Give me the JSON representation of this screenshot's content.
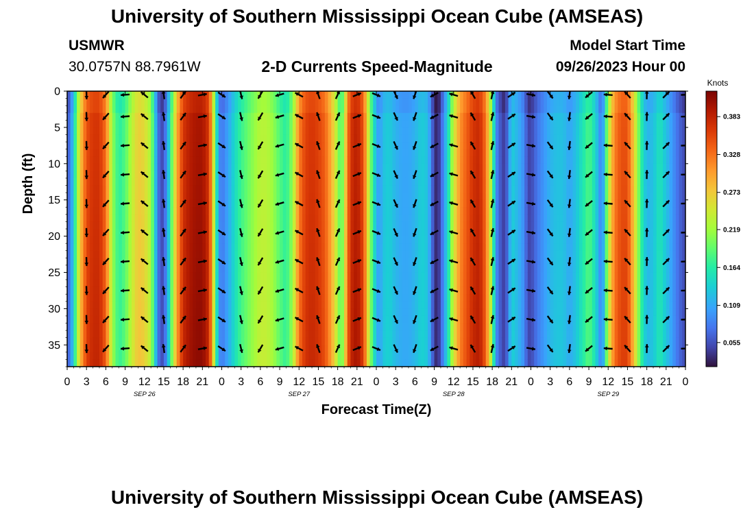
{
  "header": {
    "title": "University of Southern Mississippi Ocean Cube (AMSEAS)",
    "station": "USMWR",
    "coords": "30.0757N  88.7961W",
    "plot_title": "2-D Currents Speed-Magnitude",
    "model_start_label": "Model Start Time",
    "model_start_value": "09/26/2023 Hour 00"
  },
  "footer": {
    "title": "University of Southern Mississippi Ocean Cube (AMSEAS)"
  },
  "colors": {
    "low": "#30123b",
    "high": "#7a0403",
    "arrow": "#000000"
  },
  "chart_data": {
    "type": "heatmap",
    "title": "2-D Currents Speed-Magnitude",
    "xlabel": "Forecast Time(Z)",
    "ylabel": "Depth (ft)",
    "x_range_hours": [
      0,
      96
    ],
    "x_ticks": [
      {
        "h": 0,
        "label": "0"
      },
      {
        "h": 3,
        "label": "3"
      },
      {
        "h": 6,
        "label": "6"
      },
      {
        "h": 9,
        "label": "9"
      },
      {
        "h": 12,
        "label": "12"
      },
      {
        "h": 15,
        "label": "15"
      },
      {
        "h": 18,
        "label": "18"
      },
      {
        "h": 21,
        "label": "21"
      },
      {
        "h": 24,
        "label": "0"
      },
      {
        "h": 27,
        "label": "3"
      },
      {
        "h": 30,
        "label": "6"
      },
      {
        "h": 33,
        "label": "9"
      },
      {
        "h": 36,
        "label": "12"
      },
      {
        "h": 39,
        "label": "15"
      },
      {
        "h": 42,
        "label": "18"
      },
      {
        "h": 45,
        "label": "21"
      },
      {
        "h": 48,
        "label": "0"
      },
      {
        "h": 51,
        "label": "3"
      },
      {
        "h": 54,
        "label": "6"
      },
      {
        "h": 57,
        "label": "9"
      },
      {
        "h": 60,
        "label": "12"
      },
      {
        "h": 63,
        "label": "15"
      },
      {
        "h": 66,
        "label": "18"
      },
      {
        "h": 69,
        "label": "21"
      },
      {
        "h": 72,
        "label": "0"
      },
      {
        "h": 75,
        "label": "3"
      },
      {
        "h": 78,
        "label": "6"
      },
      {
        "h": 81,
        "label": "9"
      },
      {
        "h": 84,
        "label": "12"
      },
      {
        "h": 87,
        "label": "15"
      },
      {
        "h": 90,
        "label": "18"
      },
      {
        "h": 93,
        "label": "21"
      },
      {
        "h": 96,
        "label": "0"
      }
    ],
    "date_labels": [
      {
        "h": 12,
        "label": "SEP 26"
      },
      {
        "h": 36,
        "label": "SEP 27"
      },
      {
        "h": 60,
        "label": "SEP 28"
      },
      {
        "h": 84,
        "label": "SEP 29"
      }
    ],
    "y_range_ft": [
      0,
      38
    ],
    "y_ticks": [
      0,
      5,
      10,
      15,
      20,
      25,
      30,
      35
    ],
    "colorbar": {
      "unit_label": "Knots",
      "min": 0.02,
      "max": 0.42,
      "ticks": [
        "0.055",
        "0.109",
        "0.164",
        "0.219",
        "0.273",
        "0.328",
        "0.383"
      ]
    },
    "speed_profile_hours": [
      0,
      0.5,
      1,
      1.5,
      2,
      3,
      4,
      5,
      6,
      6.5,
      7,
      8,
      9,
      10,
      11,
      12,
      13,
      13.5,
      14,
      14.5,
      15,
      15.5,
      16,
      17,
      18,
      19,
      20,
      21,
      22,
      22.5,
      23,
      23.5,
      24,
      25,
      26,
      27,
      28,
      29,
      30,
      31,
      32,
      33,
      34,
      35,
      36,
      37,
      38,
      39,
      40,
      41,
      42,
      42.5,
      43,
      43.5,
      44,
      45,
      46,
      47,
      48,
      48.5,
      49,
      50,
      51,
      52,
      53,
      54,
      55,
      56,
      56.5,
      57,
      57.5,
      58,
      59,
      60,
      61,
      62,
      63,
      64,
      65,
      66,
      66.5,
      67,
      68,
      69,
      70,
      71,
      71.5,
      72,
      73,
      74,
      75,
      76,
      77,
      78,
      79,
      80,
      81,
      82,
      83,
      83.5,
      84,
      85,
      86,
      87,
      88,
      89,
      90,
      91,
      92,
      93,
      94,
      95,
      95.5,
      96
    ],
    "speed_profile_knots": [
      0.06,
      0.09,
      0.14,
      0.21,
      0.28,
      0.36,
      0.38,
      0.38,
      0.34,
      0.28,
      0.22,
      0.17,
      0.19,
      0.24,
      0.28,
      0.27,
      0.23,
      0.16,
      0.09,
      0.05,
      0.06,
      0.1,
      0.17,
      0.3,
      0.38,
      0.4,
      0.41,
      0.41,
      0.38,
      0.3,
      0.2,
      0.1,
      0.08,
      0.11,
      0.15,
      0.18,
      0.2,
      0.22,
      0.24,
      0.24,
      0.22,
      0.19,
      0.17,
      0.22,
      0.33,
      0.37,
      0.38,
      0.37,
      0.35,
      0.3,
      0.23,
      0.18,
      0.24,
      0.33,
      0.38,
      0.4,
      0.36,
      0.22,
      0.12,
      0.1,
      0.13,
      0.14,
      0.12,
      0.11,
      0.11,
      0.12,
      0.14,
      0.13,
      0.09,
      0.04,
      0.03,
      0.06,
      0.14,
      0.25,
      0.32,
      0.35,
      0.38,
      0.39,
      0.34,
      0.21,
      0.1,
      0.07,
      0.04,
      0.14,
      0.12,
      0.09,
      0.05,
      0.05,
      0.08,
      0.1,
      0.12,
      0.13,
      0.13,
      0.11,
      0.13,
      0.16,
      0.19,
      0.15,
      0.08,
      0.15,
      0.24,
      0.33,
      0.36,
      0.36,
      0.28,
      0.18,
      0.12,
      0.13,
      0.16,
      0.13,
      0.1,
      0.07,
      0.06,
      0.05
    ]
  }
}
